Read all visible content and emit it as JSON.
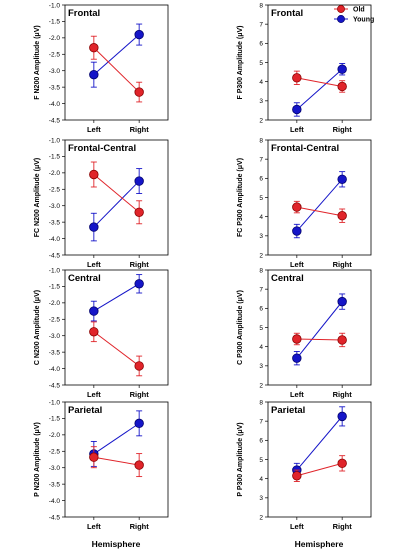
{
  "figure": {
    "xlabel_left": "Hemisphere",
    "xlabel_right": "Hemisphere"
  },
  "legend": {
    "items": [
      {
        "name": "Old",
        "color": "#e0242a"
      },
      {
        "name": "Young",
        "color": "#1515c8"
      }
    ]
  },
  "colors": {
    "old": "#e0242a",
    "old_dark": "#8b0000",
    "young": "#1515c8",
    "young_dark": "#00006e"
  },
  "chart_data": [
    {
      "type": "line",
      "title": "Frontal",
      "ylabel": "F N200 Amplitude (μV)",
      "categories": [
        "Left",
        "Right"
      ],
      "ylim": [
        -4.5,
        -1.0
      ],
      "yticks": [
        -4.5,
        -4.0,
        -3.5,
        -3.0,
        -2.5,
        -2.0,
        -1.5,
        -1.0
      ],
      "tick_labels": [
        "-4.5",
        "-4.0",
        "-3.5",
        "-3.0",
        "-2.5",
        "-2.0",
        "-1.5",
        "-1.0"
      ],
      "series": [
        {
          "name": "Old",
          "values": [
            -2.3,
            -3.65
          ],
          "errors": [
            0.35,
            0.3
          ]
        },
        {
          "name": "Young",
          "values": [
            -3.12,
            -1.9
          ],
          "errors": [
            0.38,
            0.32
          ]
        }
      ]
    },
    {
      "type": "line",
      "title": "Frontal",
      "ylabel": "F P300 Amplitude (μV)",
      "categories": [
        "Left",
        "Right"
      ],
      "ylim": [
        2,
        8
      ],
      "yticks": [
        2,
        3,
        4,
        5,
        6,
        7,
        8
      ],
      "tick_labels": [
        "2",
        "3",
        "4",
        "5",
        "6",
        "7",
        "8"
      ],
      "series": [
        {
          "name": "Old",
          "values": [
            4.2,
            3.75
          ],
          "errors": [
            0.35,
            0.3
          ]
        },
        {
          "name": "Young",
          "values": [
            2.55,
            4.65
          ],
          "errors": [
            0.35,
            0.3
          ]
        }
      ]
    },
    {
      "type": "line",
      "title": "Frontal-Central",
      "ylabel": "FC N200 Amplitude (μV)",
      "categories": [
        "Left",
        "Right"
      ],
      "ylim": [
        -4.5,
        -1.0
      ],
      "yticks": [
        -4.5,
        -4.0,
        -3.5,
        -3.0,
        -2.5,
        -2.0,
        -1.5,
        -1.0
      ],
      "tick_labels": [
        "-4.5",
        "-4.0",
        "-3.5",
        "-3.0",
        "-2.5",
        "-2.0",
        "-1.5",
        "-1.0"
      ],
      "series": [
        {
          "name": "Old",
          "values": [
            -2.05,
            -3.2
          ],
          "errors": [
            0.38,
            0.35
          ]
        },
        {
          "name": "Young",
          "values": [
            -3.65,
            -2.25
          ],
          "errors": [
            0.42,
            0.38
          ]
        }
      ]
    },
    {
      "type": "line",
      "title": "Frontal-Central",
      "ylabel": "FC P300 Amplitude (μV)",
      "categories": [
        "Left",
        "Right"
      ],
      "ylim": [
        2,
        8
      ],
      "yticks": [
        2,
        3,
        4,
        5,
        6,
        7,
        8
      ],
      "tick_labels": [
        "2",
        "3",
        "4",
        "5",
        "6",
        "7",
        "8"
      ],
      "series": [
        {
          "name": "Old",
          "values": [
            4.5,
            4.05
          ],
          "errors": [
            0.3,
            0.35
          ]
        },
        {
          "name": "Young",
          "values": [
            3.25,
            5.95
          ],
          "errors": [
            0.35,
            0.4
          ]
        }
      ]
    },
    {
      "type": "line",
      "title": "Central",
      "ylabel": "C N200 Amplitude (μV)",
      "categories": [
        "Left",
        "Right"
      ],
      "ylim": [
        -4.5,
        -1.0
      ],
      "yticks": [
        -4.5,
        -4.0,
        -3.5,
        -3.0,
        -2.5,
        -2.0,
        -1.5,
        -1.0
      ],
      "tick_labels": [
        "-4.5",
        "-4.0",
        "-3.5",
        "-3.0",
        "-2.5",
        "-2.0",
        "-1.5",
        "-1.0"
      ],
      "series": [
        {
          "name": "Old",
          "values": [
            -2.88,
            -3.92
          ],
          "errors": [
            0.3,
            0.3
          ]
        },
        {
          "name": "Young",
          "values": [
            -2.25,
            -1.42
          ],
          "errors": [
            0.3,
            0.28
          ]
        }
      ]
    },
    {
      "type": "line",
      "title": "Central",
      "ylabel": "C P300 Amplitude (μV)",
      "categories": [
        "Left",
        "Right"
      ],
      "ylim": [
        2,
        8
      ],
      "yticks": [
        2,
        3,
        4,
        5,
        6,
        7,
        8
      ],
      "tick_labels": [
        "2",
        "3",
        "4",
        "5",
        "6",
        "7",
        "8"
      ],
      "series": [
        {
          "name": "Old",
          "values": [
            4.4,
            4.35
          ],
          "errors": [
            0.3,
            0.35
          ]
        },
        {
          "name": "Young",
          "values": [
            3.4,
            6.35
          ],
          "errors": [
            0.35,
            0.4
          ]
        }
      ]
    },
    {
      "type": "line",
      "title": "Parietal",
      "ylabel": "P N200 Amplitude (μV)",
      "categories": [
        "Left",
        "Right"
      ],
      "ylim": [
        -4.5,
        -1.0
      ],
      "yticks": [
        -4.5,
        -4.0,
        -3.5,
        -3.0,
        -2.5,
        -2.0,
        -1.5,
        -1.0
      ],
      "tick_labels": [
        "-4.5",
        "-4.0",
        "-3.5",
        "-3.0",
        "-2.5",
        "-2.0",
        "-1.5",
        "-1.0"
      ],
      "series": [
        {
          "name": "Old",
          "values": [
            -2.68,
            -2.92
          ],
          "errors": [
            0.32,
            0.35
          ]
        },
        {
          "name": "Young",
          "values": [
            -2.58,
            -1.65
          ],
          "errors": [
            0.38,
            0.38
          ]
        }
      ]
    },
    {
      "type": "line",
      "title": "Parietal",
      "ylabel": "P P300 Amplitude (μV)",
      "categories": [
        "Left",
        "Right"
      ],
      "ylim": [
        2,
        8
      ],
      "yticks": [
        2,
        3,
        4,
        5,
        6,
        7,
        8
      ],
      "tick_labels": [
        "2",
        "3",
        "4",
        "5",
        "6",
        "7",
        "8"
      ],
      "series": [
        {
          "name": "Old",
          "values": [
            4.15,
            4.8
          ],
          "errors": [
            0.3,
            0.4
          ]
        },
        {
          "name": "Young",
          "values": [
            4.45,
            7.25
          ],
          "errors": [
            0.35,
            0.5
          ]
        }
      ]
    }
  ]
}
